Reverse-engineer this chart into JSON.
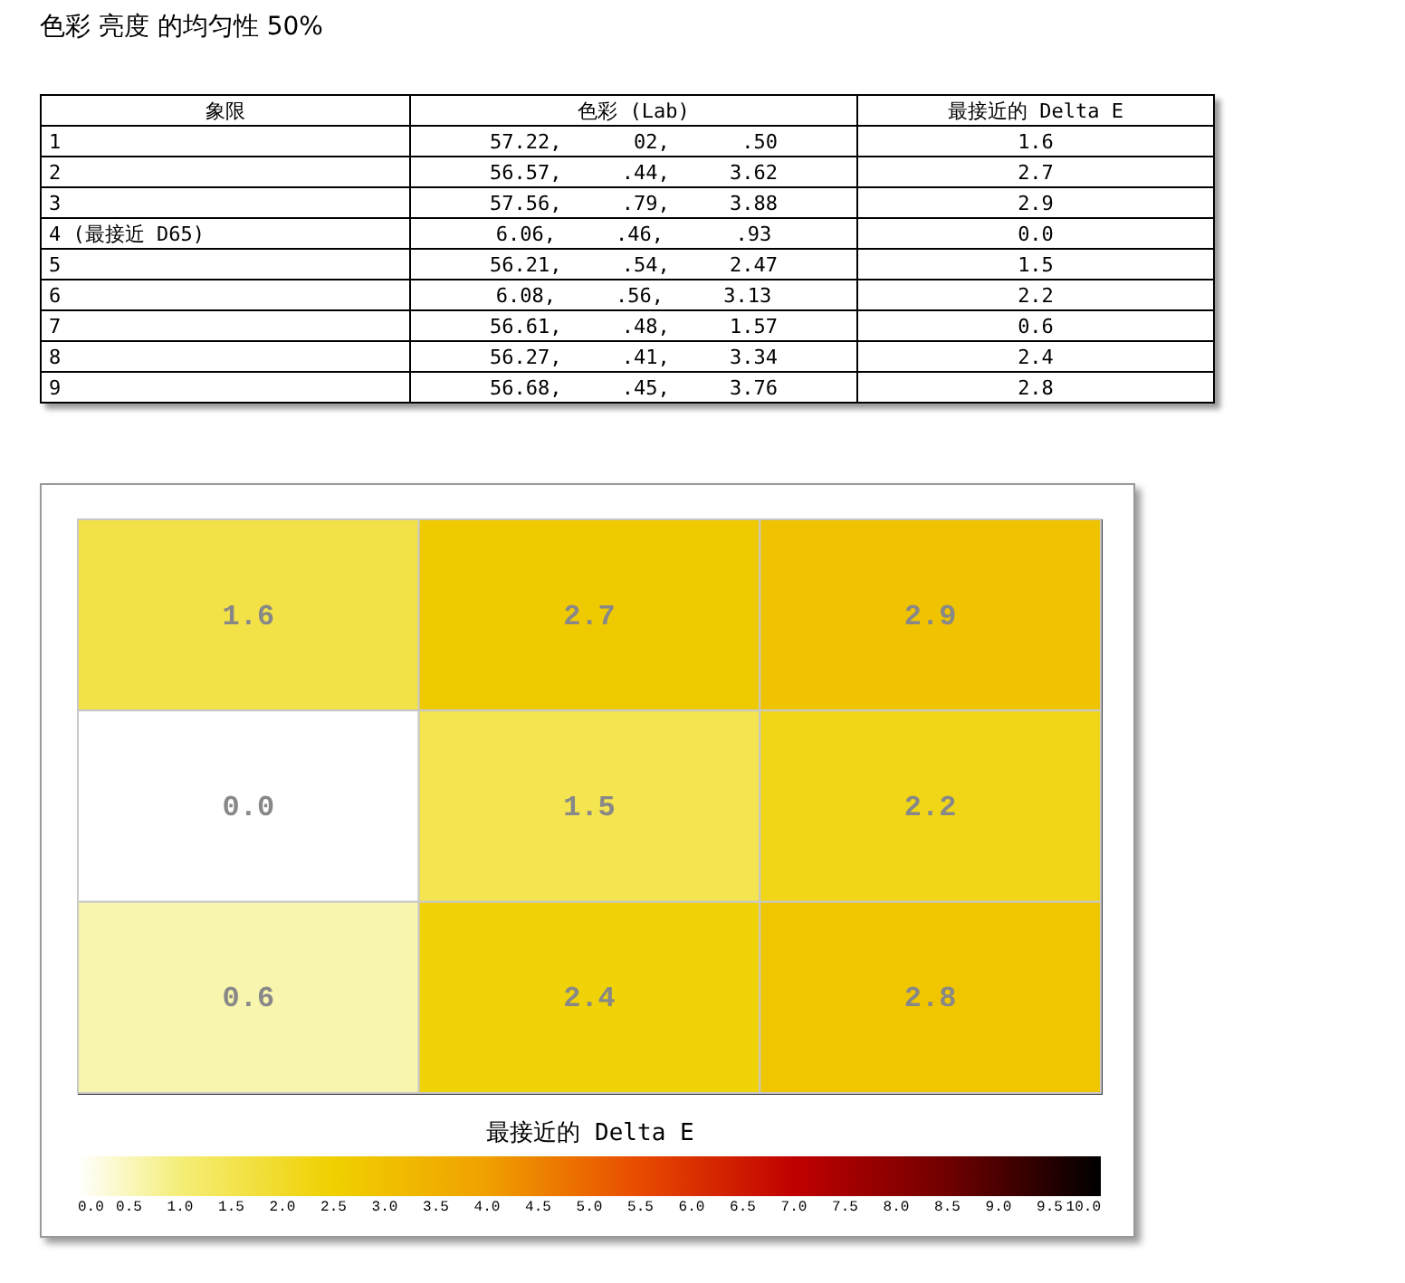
{
  "chart_data": [
    {
      "type": "other",
      "title": "色彩 亮度 的均匀性 50%",
      "annotations": [
        "象限",
        "色彩 (Lab)",
        "最接近的 Delta E",
        "1",
        "57.22,      02,      .50",
        "1.6",
        "2",
        "56.57,     .44,     3.62",
        "2.7",
        "3",
        "57.56,     .79,     3.88",
        "2.9",
        "4 (最接近 D65)",
        "6.06,     .46,      .93",
        "0.0",
        "5",
        "56.21,     .54,     2.47",
        "1.5",
        "6",
        "6.08,     .56,     3.13",
        "2.2",
        "7",
        "56.61,     .48,     1.57",
        "0.6",
        "8",
        "56.27,     .41,     3.34",
        "2.4",
        "9",
        "56.68,     .45,     3.76",
        "2.8"
      ]
    },
    {
      "type": "heatmap",
      "categories": [
        null,
        null,
        null
      ],
      "y_categories": [
        null,
        null,
        null
      ],
      "cells": [
        [
          1.6,
          2.7,
          2.9
        ],
        [
          0.0,
          1.5,
          2.2
        ],
        [
          0.6,
          2.4,
          2.8
        ]
      ],
      "cell_labels": [
        [
          "1.6",
          "2.7",
          "2.9"
        ],
        [
          "0.0",
          "1.5",
          "2.2"
        ],
        [
          "0.6",
          "2.4",
          "2.8"
        ]
      ],
      "clabel": "最接近的 Delta E",
      "clim": [
        0,
        10
      ],
      "cticks": [
        {
          "value": 0,
          "label": "0.0"
        },
        0.5,
        {
          "value": 1,
          "label": "1.0"
        },
        1.5,
        {
          "value": 2,
          "label": "2.0"
        },
        2.5,
        {
          "value": 3,
          "label": "3.0"
        },
        3.5,
        {
          "value": 4,
          "label": "4.0"
        },
        4.5,
        {
          "value": 5,
          "label": "5.0"
        },
        5.5,
        {
          "value": 6,
          "label": "6.0"
        },
        6.5,
        {
          "value": 7,
          "label": "7.0"
        },
        7.5,
        {
          "value": 8,
          "label": "8.0"
        },
        8.5,
        {
          "value": 9,
          "label": "9.0"
        },
        9.5,
        {
          "value": 10,
          "label": "10.0"
        }
      ]
    }
  ]
}
